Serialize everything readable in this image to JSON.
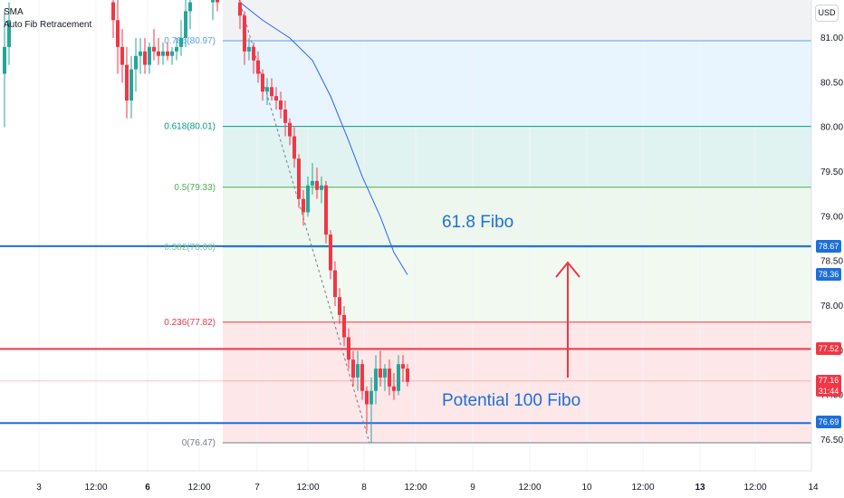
{
  "indicators": {
    "sma": "SMA",
    "fib": "Auto Fib Retracement"
  },
  "currency": "USD",
  "annotations": {
    "fibo_618": "61.8 Fibo",
    "fibo_100": "Potential 100 Fibo"
  },
  "price_tags": {
    "t7867": "78.67",
    "t7836": "78.36",
    "t7752": "77.52",
    "t7716": "77.16",
    "t7716_time": "31:44",
    "t7669": "76.69"
  },
  "colors": {
    "up": "#26a69a",
    "down": "#f23645",
    "sma": "#2962ff",
    "blue_line": "#1e6fd9",
    "red_line": "#f23645",
    "arrow": "#f23645"
  },
  "chart_data": {
    "type": "candlestick",
    "ylim": [
      76.45,
      81.4
    ],
    "y_ticks": [
      "81.00",
      "80.50",
      "80.00",
      "79.50",
      "79.00",
      "78.50",
      "78.00",
      "77.50",
      "77.00",
      "76.50"
    ],
    "x_ticks": [
      "3",
      "12:00",
      "6",
      "12:00",
      "7",
      "12:00",
      "8",
      "12:00",
      "9",
      "12:00",
      "10",
      "12:00",
      "13",
      "12:00",
      "14"
    ],
    "fib_levels": [
      {
        "label": "0.786(80.97)",
        "ratio": 0.786,
        "price": 80.97,
        "color": "#5b9cf6",
        "fill": "rgba(33,150,243,0.10)"
      },
      {
        "label": "0.618(80.01)",
        "ratio": 0.618,
        "price": 80.01,
        "color": "#089981",
        "fill": "rgba(8,153,129,0.12)"
      },
      {
        "label": "0.5(79.33)",
        "ratio": 0.5,
        "price": 79.33,
        "color": "#4caf50",
        "fill": "rgba(76,175,80,0.10)"
      },
      {
        "label": "0.382(78.66)",
        "ratio": 0.382,
        "price": 78.66,
        "color": "#81c784",
        "fill": "rgba(76,175,80,0.08)"
      },
      {
        "label": "0.236(77.82)",
        "ratio": 0.236,
        "price": 77.82,
        "color": "#f23645",
        "fill": "rgba(242,54,69,0.12)"
      },
      {
        "label": "0(76.47)",
        "ratio": 0,
        "price": 76.47,
        "color": "#787b86",
        "fill": ""
      }
    ],
    "horizontal_lines": [
      {
        "price": 78.67,
        "color": "#1e6fd9"
      },
      {
        "price": 77.52,
        "color": "#f23645"
      },
      {
        "price": 76.69,
        "color": "#1e6fd9"
      }
    ],
    "sma": [
      [
        265,
        81.4
      ],
      [
        290,
        81.2
      ],
      [
        320,
        81.0
      ],
      [
        345,
        80.75
      ],
      [
        365,
        80.35
      ],
      [
        385,
        79.85
      ],
      [
        400,
        79.45
      ],
      [
        420,
        79.0
      ],
      [
        435,
        78.6
      ],
      [
        450,
        78.35
      ]
    ],
    "candles": [
      [
        5,
        80.6,
        81.3,
        80.0,
        80.9
      ],
      [
        10,
        80.9,
        81.4,
        80.7,
        81.2
      ],
      [
        125,
        81.4,
        81.6,
        81.0,
        81.2
      ],
      [
        130,
        81.2,
        81.5,
        80.6,
        80.9
      ],
      [
        135,
        80.9,
        81.1,
        80.5,
        80.7
      ],
      [
        140,
        80.7,
        80.9,
        80.1,
        80.3
      ],
      [
        145,
        80.3,
        80.8,
        80.1,
        80.65
      ],
      [
        150,
        80.65,
        81.0,
        80.4,
        80.8
      ],
      [
        155,
        80.8,
        81.0,
        80.6,
        80.85
      ],
      [
        160,
        80.85,
        81.0,
        80.6,
        80.7
      ],
      [
        165,
        80.7,
        80.95,
        80.6,
        80.9
      ],
      [
        170,
        80.9,
        81.1,
        80.75,
        80.85
      ],
      [
        175,
        80.85,
        81.0,
        80.7,
        80.8
      ],
      [
        180,
        80.8,
        80.95,
        80.7,
        80.85
      ],
      [
        185,
        80.85,
        80.95,
        80.75,
        80.8
      ],
      [
        190,
        80.8,
        80.9,
        80.7,
        80.85
      ],
      [
        195,
        80.85,
        81.0,
        80.75,
        80.9
      ],
      [
        200,
        80.9,
        81.2,
        80.8,
        81.0
      ],
      [
        205,
        81.0,
        81.5,
        80.9,
        81.3
      ],
      [
        210,
        81.3,
        81.6,
        81.1,
        81.4
      ],
      [
        235,
        81.4,
        81.6,
        81.2,
        81.5
      ],
      [
        240,
        81.5,
        81.6,
        81.3,
        81.4
      ],
      [
        265,
        81.4,
        81.5,
        81.1,
        81.25
      ],
      [
        270,
        81.25,
        81.3,
        80.7,
        80.85
      ],
      [
        275,
        80.85,
        81.0,
        80.75,
        80.9
      ],
      [
        280,
        80.9,
        80.95,
        80.6,
        80.75
      ],
      [
        285,
        80.75,
        80.85,
        80.5,
        80.6
      ],
      [
        290,
        80.6,
        80.65,
        80.3,
        80.4
      ],
      [
        295,
        80.4,
        80.55,
        80.25,
        80.45
      ],
      [
        300,
        80.45,
        80.55,
        80.3,
        80.35
      ],
      [
        305,
        80.35,
        80.45,
        80.2,
        80.3
      ],
      [
        310,
        80.3,
        80.4,
        80.1,
        80.2
      ],
      [
        315,
        80.2,
        80.3,
        79.9,
        80.05
      ],
      [
        320,
        80.05,
        80.1,
        79.8,
        79.9
      ],
      [
        325,
        79.9,
        80.0,
        79.55,
        79.65
      ],
      [
        330,
        79.65,
        79.7,
        79.1,
        79.2
      ],
      [
        335,
        79.2,
        79.3,
        78.9,
        79.05
      ],
      [
        340,
        79.05,
        79.45,
        79.0,
        79.35
      ],
      [
        345,
        79.35,
        79.6,
        79.25,
        79.4
      ],
      [
        350,
        79.4,
        79.55,
        79.2,
        79.3
      ],
      [
        355,
        79.3,
        79.45,
        79.15,
        79.35
      ],
      [
        360,
        79.35,
        79.4,
        78.7,
        78.8
      ],
      [
        365,
        78.8,
        78.85,
        78.3,
        78.4
      ],
      [
        370,
        78.4,
        78.5,
        78.0,
        78.1
      ],
      [
        375,
        78.1,
        78.2,
        77.8,
        77.9
      ],
      [
        380,
        77.9,
        78.0,
        77.55,
        77.65
      ],
      [
        385,
        77.65,
        77.75,
        77.3,
        77.4
      ],
      [
        390,
        77.4,
        77.5,
        77.1,
        77.2
      ],
      [
        395,
        77.2,
        77.5,
        77.05,
        77.35
      ],
      [
        400,
        77.35,
        77.4,
        76.95,
        77.05
      ],
      [
        405,
        77.05,
        77.1,
        76.6,
        76.9
      ],
      [
        410,
        76.9,
        77.2,
        76.47,
        77.05
      ],
      [
        415,
        77.05,
        77.45,
        76.9,
        77.3
      ],
      [
        420,
        77.3,
        77.5,
        77.1,
        77.2
      ],
      [
        425,
        77.2,
        77.35,
        77.05,
        77.3
      ],
      [
        430,
        77.3,
        77.4,
        77.0,
        77.1
      ],
      [
        435,
        77.1,
        77.25,
        76.95,
        77.05
      ],
      [
        440,
        77.05,
        77.45,
        77.0,
        77.35
      ],
      [
        445,
        77.35,
        77.45,
        77.15,
        77.3
      ],
      [
        450,
        77.3,
        77.35,
        77.1,
        77.15
      ]
    ]
  }
}
